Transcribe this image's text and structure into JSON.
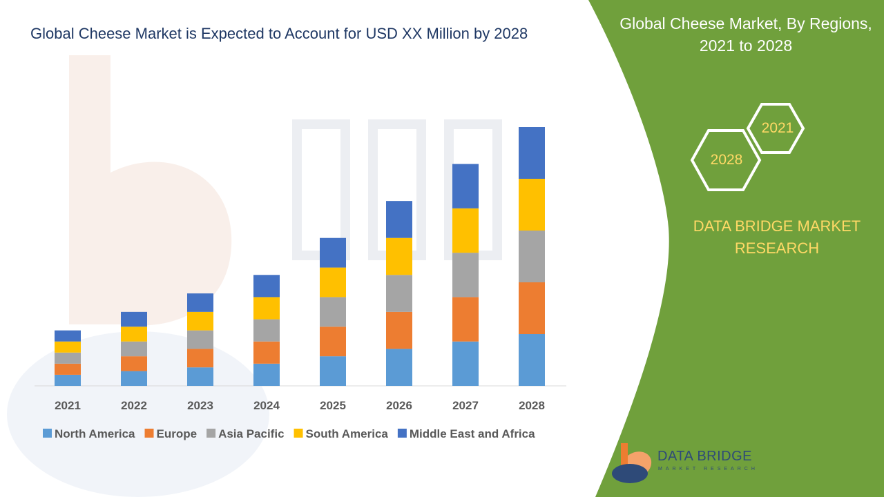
{
  "chart_data": {
    "type": "bar",
    "stacked": true,
    "title": "Global Cheese Market is Expected to Account for USD XX Million by 2028",
    "categories": [
      "2021",
      "2022",
      "2023",
      "2024",
      "2025",
      "2026",
      "2027",
      "2028"
    ],
    "series": [
      {
        "name": "North America",
        "color": "#5b9bd5",
        "values": [
          15,
          20,
          25,
          30,
          40,
          50,
          60,
          70
        ]
      },
      {
        "name": "Europe",
        "color": "#ed7d31",
        "values": [
          15,
          20,
          25,
          30,
          40,
          50,
          60,
          70
        ]
      },
      {
        "name": "Asia Pacific",
        "color": "#a5a5a5",
        "values": [
          15,
          20,
          25,
          30,
          40,
          50,
          60,
          70
        ]
      },
      {
        "name": "South America",
        "color": "#ffc000",
        "values": [
          15,
          20,
          25,
          30,
          40,
          50,
          60,
          70
        ]
      },
      {
        "name": "Middle East and Africa",
        "color": "#4472c4",
        "values": [
          15,
          20,
          25,
          30,
          40,
          50,
          60,
          70
        ]
      }
    ],
    "xlabel": "",
    "ylabel": "",
    "ylim": [
      0,
      350
    ],
    "grid": false,
    "legend": "bottom"
  },
  "panel": {
    "title_line1": "Global Cheese Market, By Regions,",
    "title_line2": "2021 to 2028",
    "hex_start": "2021",
    "hex_end": "2028",
    "brand_line1": "DATA BRIDGE MARKET",
    "brand_line2": "RESEARCH",
    "color": "#70a03c"
  },
  "logo": {
    "name": "DATA BRIDGE",
    "subtitle": "MARKET RESEARCH"
  }
}
